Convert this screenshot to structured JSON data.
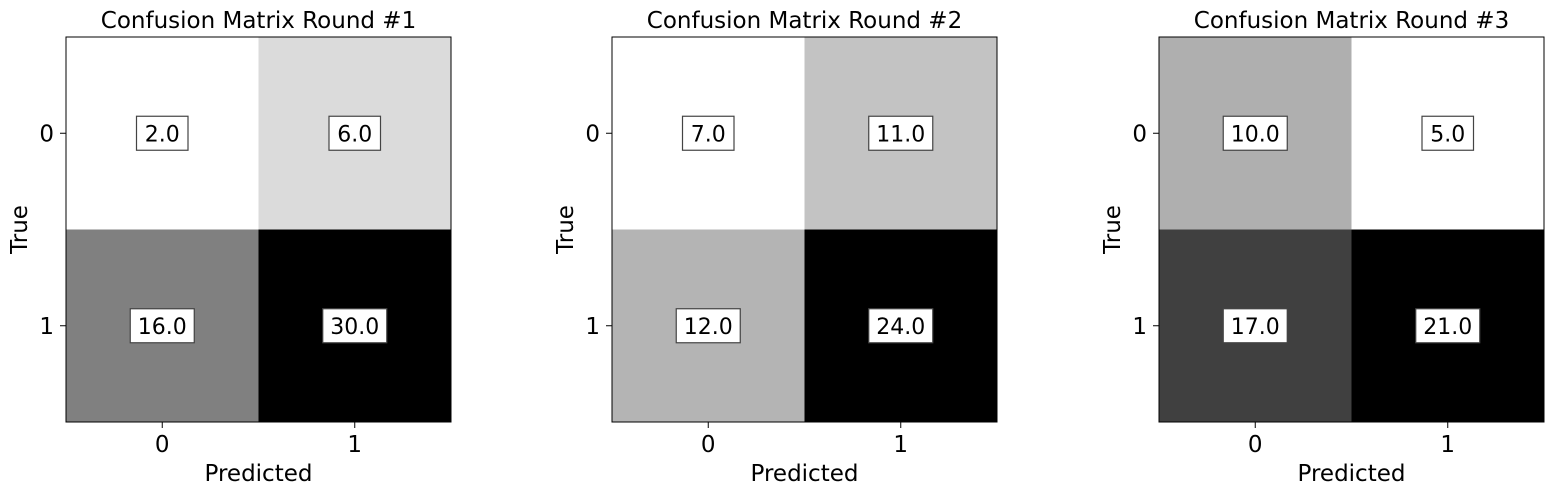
{
  "chart_data": [
    {
      "type": "heatmap",
      "title": "Confusion Matrix Round #1",
      "xlabel": "Predicted",
      "ylabel": "True",
      "x_ticks": [
        "0",
        "1"
      ],
      "y_ticks": [
        "0",
        "1"
      ],
      "matrix": [
        [
          2.0,
          6.0
        ],
        [
          16.0,
          30.0
        ]
      ],
      "cell_labels": [
        [
          "2.0",
          "6.0"
        ],
        [
          "16.0",
          "30.0"
        ]
      ],
      "colormap": "Greys"
    },
    {
      "type": "heatmap",
      "title": "Confusion Matrix Round #2",
      "xlabel": "Predicted",
      "ylabel": "True",
      "x_ticks": [
        "0",
        "1"
      ],
      "y_ticks": [
        "0",
        "1"
      ],
      "matrix": [
        [
          7.0,
          11.0
        ],
        [
          12.0,
          24.0
        ]
      ],
      "cell_labels": [
        [
          "7.0",
          "11.0"
        ],
        [
          "12.0",
          "24.0"
        ]
      ],
      "colormap": "Greys"
    },
    {
      "type": "heatmap",
      "title": "Confusion Matrix Round #3",
      "xlabel": "Predicted",
      "ylabel": "True",
      "x_ticks": [
        "0",
        "1"
      ],
      "y_ticks": [
        "0",
        "1"
      ],
      "matrix": [
        [
          10.0,
          5.0
        ],
        [
          17.0,
          21.0
        ]
      ],
      "cell_labels": [
        [
          "10.0",
          "5.0"
        ],
        [
          "17.0",
          "21.0"
        ]
      ],
      "colormap": "Greys"
    }
  ]
}
